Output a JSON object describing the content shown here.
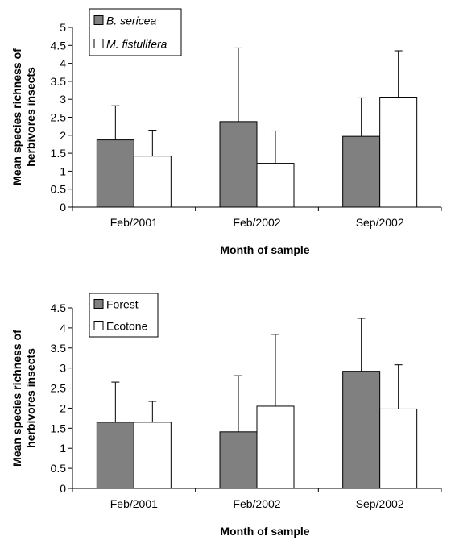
{
  "chart_data": [
    {
      "type": "bar",
      "title": "",
      "xlabel": "Month of sample",
      "ylabel_lines": [
        "Mean species richness of",
        "herbivores insects"
      ],
      "categories": [
        "Feb/2001",
        "Feb/2002",
        "Sep/2002"
      ],
      "ylim": [
        0,
        5
      ],
      "yticks": [
        "0",
        "0.5",
        "1",
        "1.5",
        "2",
        "2.5",
        "3",
        "3.5",
        "4",
        "4.5",
        "5"
      ],
      "legend_position": "top-left",
      "legend_italic": true,
      "grid": false,
      "series": [
        {
          "name": "B. sericea",
          "color": "#808080",
          "values": [
            1.87,
            2.38,
            1.97
          ],
          "errors": [
            0.95,
            2.05,
            1.07
          ]
        },
        {
          "name": "M. fistulifera",
          "color": "#ffffff",
          "values": [
            1.42,
            1.22,
            3.06
          ],
          "errors": [
            0.72,
            0.9,
            1.29
          ]
        }
      ]
    },
    {
      "type": "bar",
      "title": "",
      "xlabel": "Month of sample",
      "ylabel_lines": [
        "Mean species richness of",
        "herbivores insects"
      ],
      "categories": [
        "Feb/2001",
        "Feb/2002",
        "Sep/2002"
      ],
      "ylim": [
        0,
        4.5
      ],
      "yticks": [
        "0",
        "0.5",
        "1",
        "1.5",
        "2",
        "2.5",
        "3",
        "3.5",
        "4",
        "4.5"
      ],
      "legend_position": "top-left",
      "legend_italic": false,
      "grid": false,
      "series": [
        {
          "name": "Forest",
          "color": "#808080",
          "values": [
            1.65,
            1.41,
            2.92
          ],
          "errors": [
            1.0,
            1.4,
            1.32
          ]
        },
        {
          "name": "Ecotone",
          "color": "#ffffff",
          "values": [
            1.65,
            2.05,
            1.98
          ],
          "errors": [
            0.52,
            1.79,
            1.1
          ]
        }
      ]
    }
  ]
}
